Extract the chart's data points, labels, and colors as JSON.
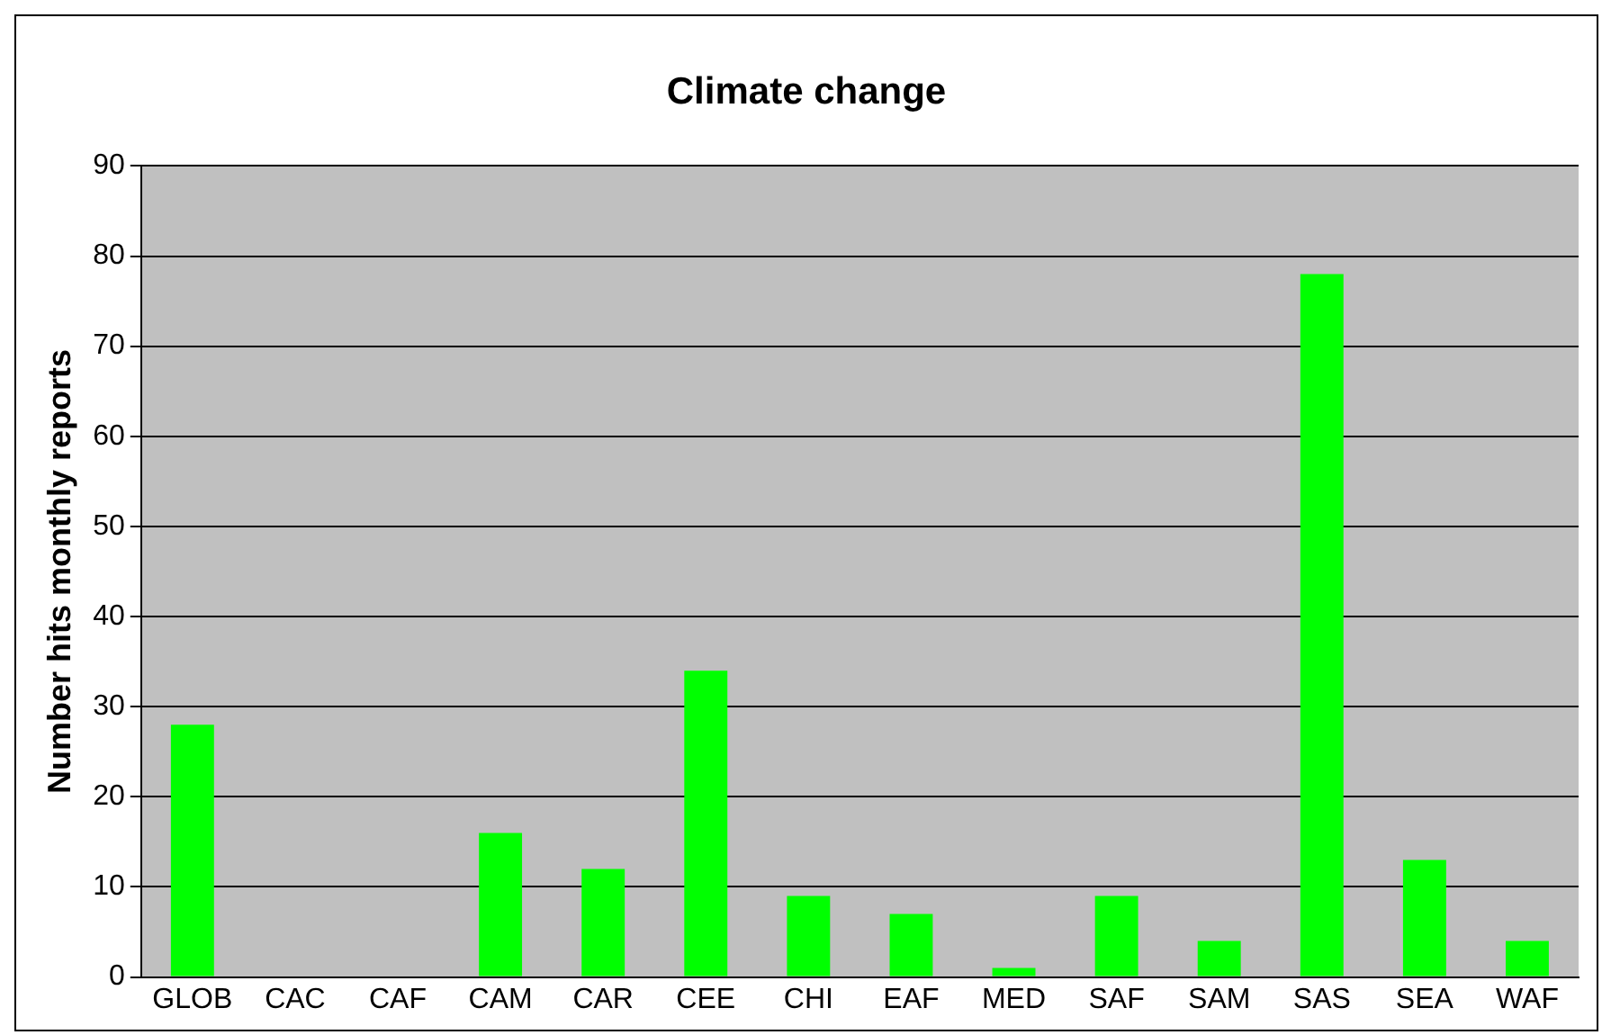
{
  "chart_data": {
    "type": "bar",
    "title": "Climate change",
    "ylabel": "Number hits monthly reports",
    "categories": [
      "GLOB",
      "CAC",
      "CAF",
      "CAM",
      "CAR",
      "CEE",
      "CHI",
      "EAF",
      "MED",
      "SAF",
      "SAM",
      "SAS",
      "SEA",
      "WAF"
    ],
    "values": [
      28,
      0,
      0,
      16,
      12,
      34,
      9,
      7,
      1,
      9,
      4,
      78,
      13,
      4
    ],
    "color": "#00ff00",
    "ylim": [
      0,
      90
    ],
    "yticks": [
      0,
      10,
      20,
      30,
      40,
      50,
      60,
      70,
      80,
      90
    ],
    "grid": "y",
    "legend": false
  }
}
